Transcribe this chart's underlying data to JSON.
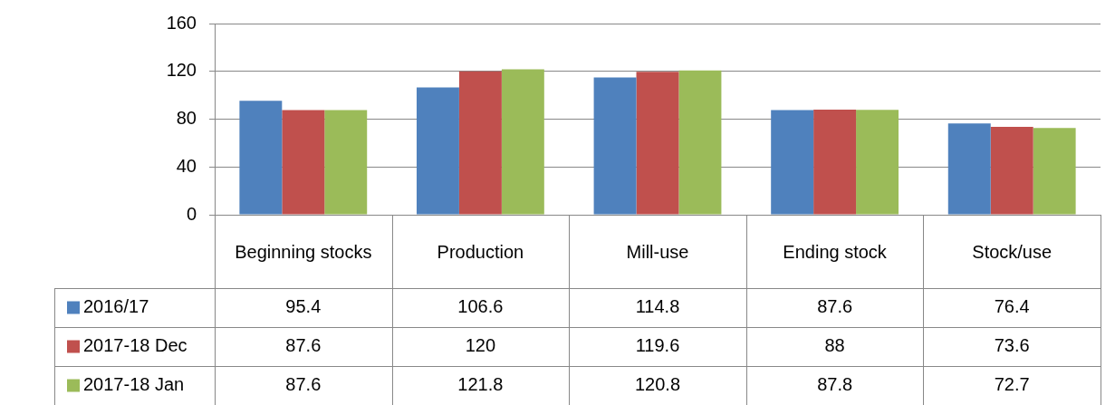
{
  "chart_data": {
    "type": "bar",
    "categories": [
      "Beginning stocks",
      "Production",
      "Mill-use",
      "Ending stock",
      "Stock/use"
    ],
    "series": [
      {
        "name": "2016/17",
        "color": "#4f81bd",
        "values": [
          95.4,
          106.6,
          114.8,
          87.6,
          76.4
        ]
      },
      {
        "name": "2017-18 Dec",
        "color": "#c0504d",
        "values": [
          87.6,
          120,
          119.6,
          88,
          73.6
        ]
      },
      {
        "name": "2017-18 Jan",
        "color": "#9bbb59",
        "values": [
          87.6,
          121.8,
          120.8,
          87.8,
          72.7
        ]
      }
    ],
    "ylim": [
      0,
      160
    ],
    "yticks": [
      0,
      40,
      80,
      120,
      160
    ],
    "grid": "y",
    "legend": "bottom",
    "data_labels": true
  }
}
